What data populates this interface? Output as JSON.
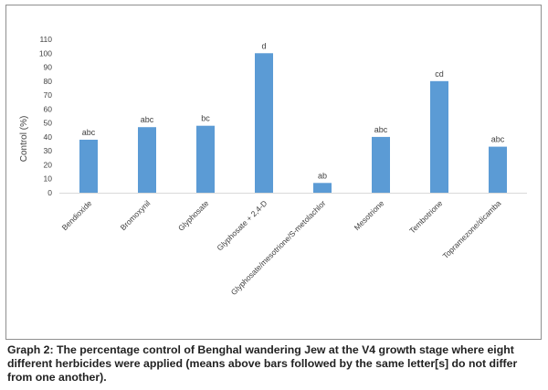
{
  "chart_data": {
    "type": "bar",
    "title": "",
    "xlabel": "",
    "ylabel": "Control (%)",
    "ylim": [
      0,
      110
    ],
    "yticks": [
      0,
      10,
      20,
      30,
      40,
      50,
      60,
      70,
      80,
      90,
      100,
      110
    ],
    "grid": false,
    "legend": "none",
    "categories": [
      "Bendioxide",
      "Bromoxynil",
      "Glyphosate",
      "Glyphosate + 2,4-D",
      "Glyphosate/mesotrione/S-metolachlor",
      "Mesotrione",
      "Tembotrione",
      "Topramezone/dicamba"
    ],
    "values": [
      38,
      47,
      48,
      100,
      7,
      40,
      80,
      33
    ],
    "letters": [
      "abc",
      "abc",
      "bc",
      "d",
      "ab",
      "abc",
      "cd",
      "abc"
    ],
    "bar_color": "#5b9bd5"
  },
  "caption": "Graph 2: The percentage control of Benghal wandering Jew at the V4 growth stage where eight different herbicides were applied (means above bars followed by the same letter[s] do not differ from one another)."
}
